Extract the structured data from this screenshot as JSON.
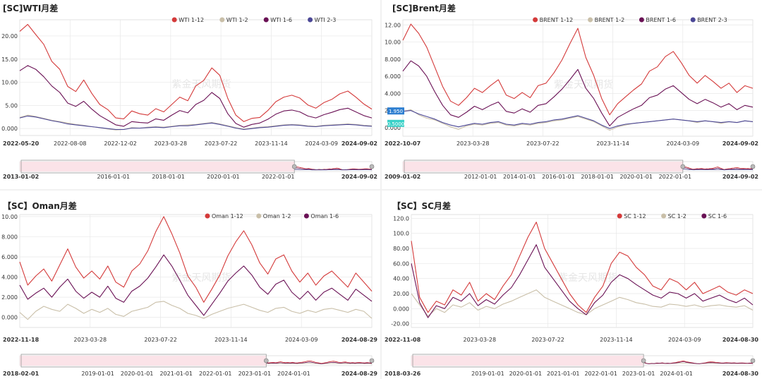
{
  "watermark": "紫金天风期货",
  "colors": {
    "grid": "#e8e8e8",
    "axis": "#cfcfcf",
    "brush_fill": "#fbe3e8"
  },
  "chart_data": [
    {
      "type": "line",
      "title": "[SC]WTI月差",
      "series": [
        {
          "name": "WTI 1-12",
          "color": "#d43a3a",
          "values": [
            21.0,
            22.5,
            20.3,
            18.2,
            14.5,
            12.8,
            9.1,
            8.0,
            10.5,
            7.6,
            5.2,
            4.1,
            2.3,
            2.1,
            3.8,
            3.2,
            2.9,
            4.3,
            3.6,
            5.2,
            6.8,
            6.0,
            9.2,
            10.4,
            13.1,
            11.5,
            6.5,
            2.9,
            1.5,
            2.2,
            2.4,
            3.9,
            5.8,
            6.8,
            7.2,
            6.6,
            5.1,
            4.4,
            5.6,
            6.3,
            7.5,
            8.1,
            6.8,
            5.3,
            4.2
          ]
        },
        {
          "name": "WTI 1-2",
          "color": "#c9bfa8",
          "values": [
            2.4,
            2.9,
            2.6,
            2.2,
            1.8,
            1.5,
            1.2,
            0.9,
            0.7,
            0.4,
            0.2,
            -0.1,
            -0.3,
            -0.2,
            0.2,
            0.1,
            0.3,
            0.4,
            0.3,
            0.5,
            0.7,
            0.8,
            0.9,
            1.1,
            1.3,
            1.0,
            0.6,
            0.2,
            -0.1,
            0.1,
            0.3,
            0.4,
            0.6,
            0.8,
            0.9,
            0.8,
            0.6,
            0.5,
            0.7,
            0.8,
            0.9,
            1.0,
            0.9,
            0.7,
            0.6
          ]
        },
        {
          "name": "WTI 1-6",
          "color": "#6a1155",
          "values": [
            12.5,
            13.6,
            12.8,
            11.2,
            9.2,
            7.8,
            5.5,
            4.8,
            5.9,
            4.2,
            2.8,
            1.8,
            0.8,
            0.5,
            1.5,
            1.3,
            1.2,
            2.1,
            1.8,
            2.9,
            3.9,
            3.4,
            5.2,
            6.1,
            7.8,
            6.5,
            3.2,
            1.1,
            0.3,
            0.9,
            1.2,
            2.0,
            3.1,
            3.8,
            4.0,
            3.6,
            2.7,
            2.3,
            3.0,
            3.5,
            4.1,
            4.4,
            3.6,
            2.8,
            2.3
          ]
        },
        {
          "name": "WTI 2-3",
          "color": "#4b4796",
          "values": [
            2.3,
            2.7,
            2.5,
            2.1,
            1.7,
            1.4,
            1.0,
            0.8,
            0.6,
            0.4,
            0.2,
            0.0,
            -0.2,
            -0.2,
            0.1,
            0.1,
            0.2,
            0.3,
            0.2,
            0.4,
            0.6,
            0.6,
            0.8,
            1.0,
            1.2,
            0.9,
            0.5,
            0.1,
            -0.2,
            0.0,
            0.2,
            0.3,
            0.5,
            0.7,
            0.8,
            0.7,
            0.5,
            0.4,
            0.6,
            0.7,
            0.8,
            0.9,
            0.8,
            0.6,
            0.5
          ]
        }
      ],
      "ylim": [
        -1.5,
        23.5
      ],
      "yticks": [
        "20.00",
        "15.00",
        "10.00",
        "5.00",
        "0.000"
      ],
      "ytick_values": [
        20,
        15,
        10,
        5,
        0
      ],
      "xticks": [
        "2022-05-20",
        "2022-08-08",
        "2022-12-02",
        "2023-03-28",
        "2023-07-22",
        "2023-11-14",
        "2024-03-09",
        "2024-09-02"
      ],
      "navigator_ticks": [
        "2013-01-02",
        "2016-01-01",
        "2018-01-01",
        "2020-01-01",
        "2022-01-01",
        "2024-09-02"
      ],
      "tooltips": [],
      "legend": "top-right",
      "grid": true
    },
    {
      "type": "line",
      "title": "[SC]Brent月差",
      "series": [
        {
          "name": "BRENT 1-12",
          "color": "#d43a3a",
          "values": [
            10.2,
            12.1,
            11.0,
            9.4,
            7.1,
            4.8,
            3.1,
            2.6,
            3.5,
            4.6,
            4.1,
            4.9,
            5.6,
            3.8,
            3.4,
            4.1,
            3.5,
            4.9,
            5.2,
            6.4,
            7.9,
            9.8,
            11.6,
            8.2,
            6.1,
            3.4,
            1.5,
            2.8,
            3.6,
            4.4,
            5.1,
            6.6,
            7.1,
            8.3,
            8.9,
            7.6,
            6.1,
            5.2,
            6.1,
            5.4,
            4.6,
            5.2,
            4.1,
            4.9,
            4.6
          ]
        },
        {
          "name": "BRENT 1-2",
          "color": "#c9bfa8",
          "values": [
            1.9,
            2.1,
            1.5,
            1.1,
            0.9,
            0.5,
            0.1,
            -0.2,
            0.2,
            0.4,
            0.3,
            0.5,
            0.6,
            0.3,
            0.2,
            0.4,
            0.3,
            0.5,
            0.6,
            0.8,
            0.9,
            1.1,
            1.3,
            1.0,
            0.7,
            0.2,
            -0.3,
            0.1,
            0.3,
            0.5,
            0.6,
            0.7,
            0.8,
            0.9,
            1.0,
            0.9,
            0.8,
            0.6,
            0.8,
            0.7,
            0.5,
            0.7,
            0.6,
            0.8,
            0.7
          ]
        },
        {
          "name": "BRENT 1-6",
          "color": "#6a1155",
          "values": [
            6.6,
            7.8,
            7.2,
            6.0,
            4.2,
            2.6,
            1.5,
            1.2,
            1.8,
            2.5,
            2.1,
            2.6,
            3.0,
            1.9,
            1.7,
            2.2,
            1.8,
            2.6,
            2.8,
            3.6,
            4.5,
            5.6,
            6.8,
            4.6,
            3.4,
            1.7,
            0.2,
            1.2,
            1.7,
            2.2,
            2.6,
            3.5,
            3.8,
            4.5,
            4.9,
            4.1,
            3.3,
            2.8,
            3.3,
            2.9,
            2.4,
            2.8,
            2.1,
            2.6,
            2.4
          ]
        },
        {
          "name": "BRENT 2-3",
          "color": "#4b4796",
          "values": [
            1.9,
            2.0,
            1.6,
            1.3,
            1.0,
            0.6,
            0.3,
            0.1,
            0.3,
            0.5,
            0.4,
            0.6,
            0.7,
            0.4,
            0.3,
            0.5,
            0.4,
            0.6,
            0.7,
            0.9,
            1.0,
            1.2,
            1.4,
            1.1,
            0.8,
            0.3,
            -0.1,
            0.2,
            0.4,
            0.5,
            0.6,
            0.7,
            0.8,
            0.9,
            1.0,
            0.9,
            0.8,
            0.7,
            0.8,
            0.7,
            0.6,
            0.7,
            0.6,
            0.8,
            0.7
          ]
        }
      ],
      "ylim": [
        -1.0,
        12.6
      ],
      "yticks": [
        "12.00",
        "10.00",
        "8.000",
        "6.000",
        "4.000",
        "2.000",
        "0.000"
      ],
      "ytick_values": [
        12,
        10,
        8,
        6,
        4,
        2,
        0
      ],
      "xticks": [
        "2022-10-07",
        "2023-03-28",
        "2023-07-22",
        "2023-11-14",
        "2024-03-09",
        "2024-09-02"
      ],
      "navigator_ticks": [
        "2009-01-02",
        "2012-01-01",
        "2014-01-01",
        "2016-01-01",
        "2018-01-01",
        "2020-01-01",
        "2022-01-01",
        "2024-09-02"
      ],
      "tooltips": [
        {
          "text": "1.950",
          "color": "#2e7fd1",
          "value": 1.95
        },
        {
          "text": "0.5000",
          "color": "#3ad1c8",
          "value": 0.5
        }
      ],
      "legend": "top-right",
      "grid": true
    },
    {
      "type": "line",
      "title": "【SC】Oman月差",
      "series": [
        {
          "name": "Oman 1-12",
          "color": "#d43a3a",
          "values": [
            5.5,
            3.2,
            4.1,
            4.8,
            3.6,
            5.2,
            6.8,
            5.0,
            3.9,
            4.6,
            3.8,
            5.1,
            3.5,
            3.0,
            4.6,
            5.3,
            6.6,
            8.5,
            10.0,
            8.3,
            6.4,
            4.1,
            3.0,
            1.5,
            2.8,
            4.2,
            6.1,
            7.5,
            8.6,
            7.2,
            5.4,
            4.3,
            5.8,
            6.2,
            4.6,
            3.5,
            4.4,
            3.2,
            4.1,
            4.6,
            3.8,
            3.0,
            4.4,
            3.5,
            2.6
          ]
        },
        {
          "name": "Oman 1-2",
          "color": "#c9bfa8",
          "values": [
            0.5,
            -0.2,
            0.6,
            1.1,
            0.8,
            0.6,
            1.3,
            0.9,
            0.4,
            0.8,
            0.5,
            0.9,
            0.3,
            0.1,
            0.6,
            0.8,
            1.0,
            1.5,
            1.6,
            1.2,
            0.9,
            0.4,
            0.2,
            -0.1,
            0.3,
            0.6,
            0.9,
            1.1,
            1.3,
            1.0,
            0.7,
            0.5,
            0.9,
            1.0,
            0.6,
            0.4,
            0.7,
            0.5,
            0.8,
            0.9,
            0.7,
            0.5,
            0.8,
            0.6,
            -0.1
          ]
        },
        {
          "name": "Oman 1-6",
          "color": "#6a1155",
          "values": [
            3.2,
            1.8,
            2.4,
            2.9,
            2.0,
            3.0,
            3.8,
            2.6,
            1.9,
            2.5,
            2.0,
            3.1,
            1.9,
            1.5,
            2.6,
            3.1,
            3.9,
            5.0,
            6.2,
            5.1,
            3.7,
            2.2,
            1.2,
            0.2,
            1.3,
            2.4,
            3.6,
            4.4,
            5.1,
            4.2,
            3.0,
            2.3,
            3.3,
            3.7,
            2.5,
            1.8,
            2.6,
            1.7,
            2.5,
            2.9,
            2.3,
            1.7,
            2.8,
            2.2,
            1.6
          ]
        }
      ],
      "ylim": [
        -1.0,
        10.2
      ],
      "yticks": [
        "10.00",
        "8.000",
        "6.000",
        "4.000",
        "2.000",
        "0.000"
      ],
      "ytick_values": [
        10,
        8,
        6,
        4,
        2,
        0
      ],
      "xticks": [
        "2022-11-18",
        "2023-03-28",
        "2023-07-22",
        "2023-11-14",
        "2024-03-09",
        "2024-08-29"
      ],
      "navigator_ticks": [
        "2018-02-01",
        "2019-01-01",
        "2020-01-01",
        "2021-01-01",
        "2022-01-01",
        "2023-01-01",
        "2024-01-01",
        "2024-08-29"
      ],
      "tooltips": [],
      "legend": "top-right",
      "grid": true
    },
    {
      "type": "line",
      "title": "【SC】SC月差",
      "series": [
        {
          "name": "SC 1-12",
          "color": "#d43a3a",
          "values": [
            90.0,
            15.0,
            -5.0,
            10.0,
            5.0,
            25.0,
            18.0,
            35.0,
            10.0,
            20.0,
            12.0,
            30.0,
            45.0,
            70.0,
            95.0,
            115.0,
            80.0,
            60.0,
            40.0,
            20.0,
            5.0,
            -5.0,
            15.0,
            30.0,
            60.0,
            75.0,
            70.0,
            55.0,
            45.0,
            30.0,
            25.0,
            40.0,
            35.0,
            25.0,
            35.0,
            20.0,
            25.0,
            30.0,
            22.0,
            18.0,
            25.0,
            20.0
          ]
        },
        {
          "name": "SC 1-2",
          "color": "#c9bfa8",
          "values": [
            20.0,
            5.0,
            -10.0,
            0.0,
            -5.0,
            5.0,
            2.0,
            8.0,
            -2.0,
            3.0,
            0.0,
            6.0,
            10.0,
            15.0,
            20.0,
            25.0,
            15.0,
            10.0,
            5.0,
            0.0,
            -5.0,
            -8.0,
            0.0,
            5.0,
            10.0,
            15.0,
            12.0,
            8.0,
            6.0,
            3.0,
            2.0,
            6.0,
            5.0,
            3.0,
            5.0,
            2.0,
            4.0,
            5.0,
            3.0,
            2.0,
            4.0,
            -2.0
          ]
        },
        {
          "name": "SC 1-6",
          "color": "#6a1155",
          "values": [
            60.0,
            8.0,
            -12.0,
            4.0,
            0.0,
            15.0,
            10.0,
            20.0,
            4.0,
            12.0,
            6.0,
            18.0,
            28.0,
            45.0,
            65.0,
            85.0,
            55.0,
            40.0,
            25.0,
            10.0,
            0.0,
            -8.0,
            8.0,
            18.0,
            35.0,
            45.0,
            40.0,
            32.0,
            25.0,
            18.0,
            14.0,
            22.0,
            20.0,
            14.0,
            20.0,
            10.0,
            14.0,
            18.0,
            12.0,
            8.0,
            14.0,
            5.0
          ]
        }
      ],
      "ylim": [
        -25.0,
        125.0
      ],
      "yticks": [
        "120.0",
        "100.0",
        "80.00",
        "60.00",
        "40.00",
        "20.00",
        "0.000",
        "-20.00"
      ],
      "ytick_values": [
        120,
        100,
        80,
        60,
        40,
        20,
        0,
        -20
      ],
      "xticks": [
        "2022-11-08",
        "2023-03-28",
        "2023-07-22",
        "2023-11-14",
        "2024-03-09",
        "2024-08-30"
      ],
      "navigator_ticks": [
        "2018-03-26",
        "2019-01-01",
        "2020-01-01",
        "2021-01-01",
        "2022-01-01",
        "2023-01-01",
        "2024-01-01",
        "2024-08-30"
      ],
      "tooltips": [],
      "legend": "top-right",
      "grid": true
    }
  ]
}
